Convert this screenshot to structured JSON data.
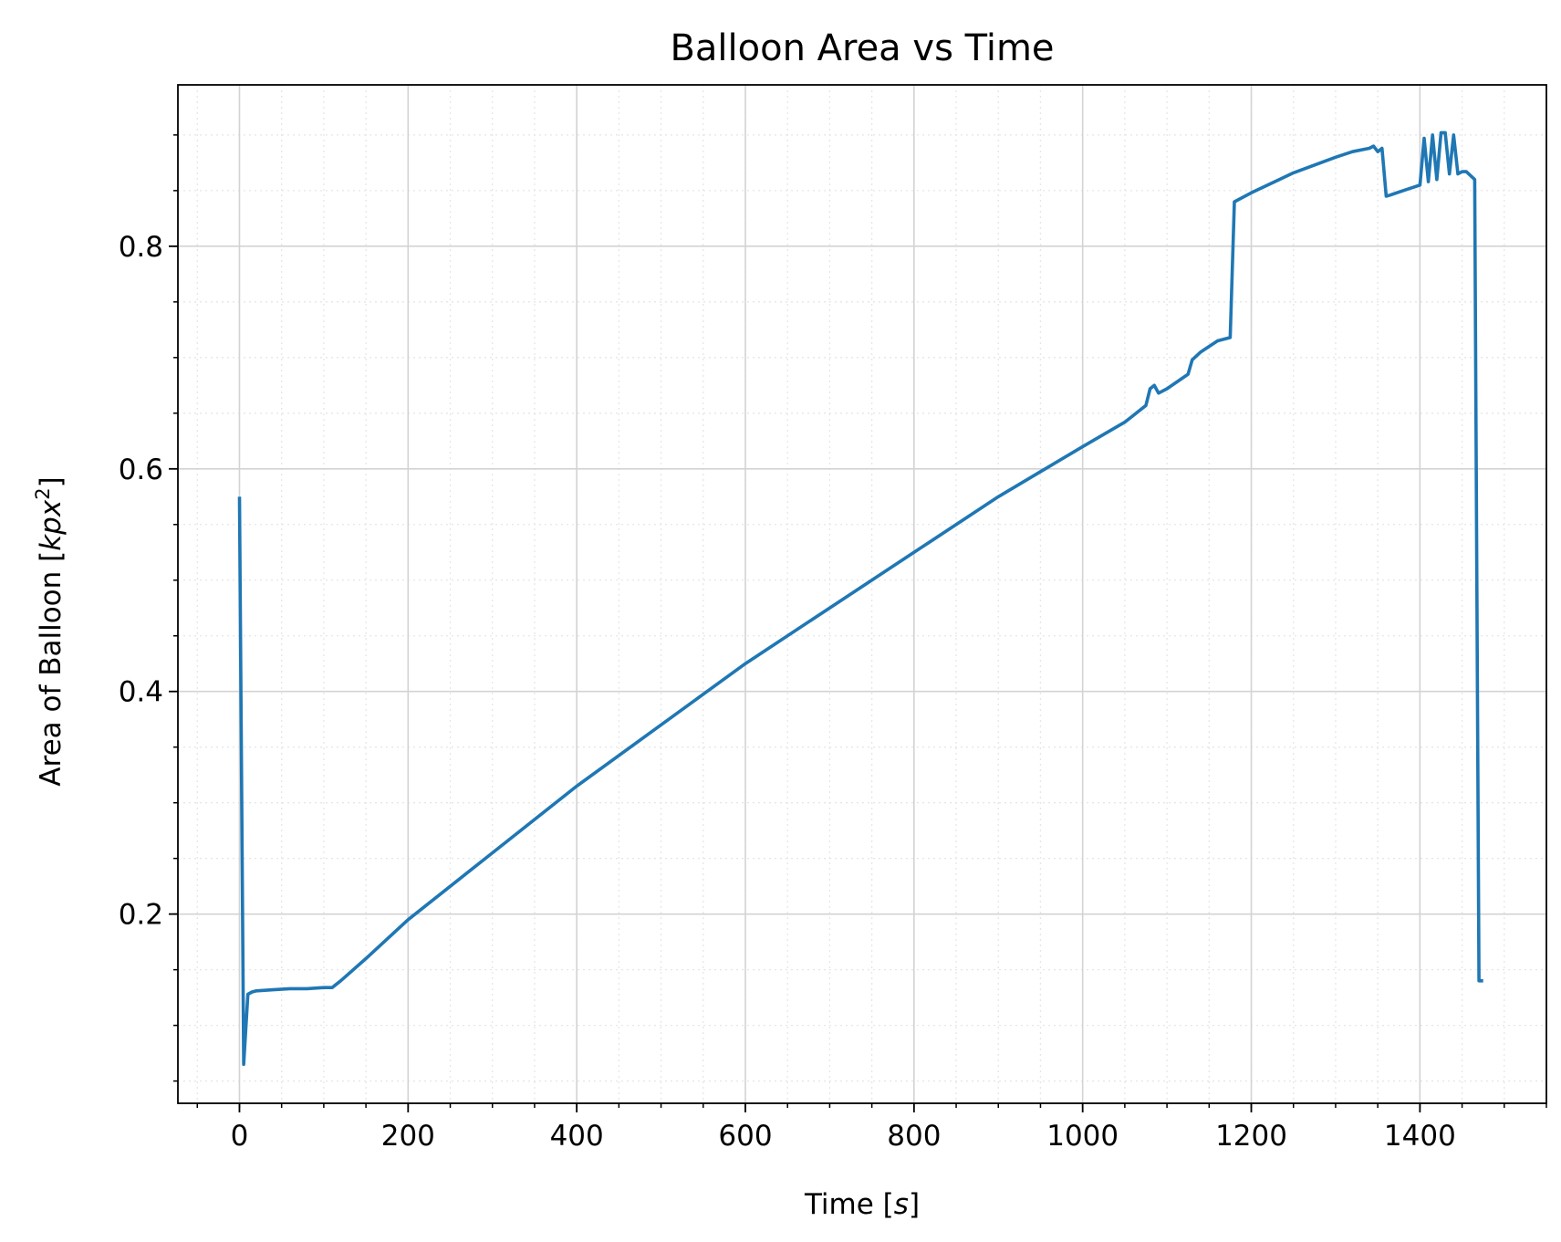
{
  "chart_data": {
    "type": "line",
    "title": "Balloon Area vs Time",
    "xlabel": "Time",
    "xlabel_unit": "s",
    "ylabel": "Area of Balloon",
    "ylabel_unit": "kpx",
    "ylabel_unit_exp": "2",
    "xlim": [
      -73,
      1550
    ],
    "ylim": [
      0.03,
      0.945
    ],
    "xticks": [
      0,
      200,
      400,
      600,
      800,
      1000,
      1200,
      1400
    ],
    "xtick_labels": [
      "0",
      "200",
      "400",
      "600",
      "800",
      "1000",
      "1200",
      "1400"
    ],
    "yticks": [
      0.2,
      0.4,
      0.6,
      0.8
    ],
    "ytick_labels": [
      "0.2",
      "0.4",
      "0.6",
      "0.8"
    ],
    "x_minor_step": 50,
    "y_minor_step": 0.05,
    "grid": true,
    "minor_grid": true,
    "line_color": "#1f77b4",
    "series": [
      {
        "x": [
          0,
          5,
          10,
          15,
          20,
          40,
          60,
          80,
          100,
          110,
          120,
          150,
          200,
          300,
          400,
          500,
          600,
          700,
          800,
          900,
          1000,
          1050,
          1075,
          1080,
          1085,
          1090,
          1100,
          1125,
          1130,
          1140,
          1160,
          1175,
          1180,
          1200,
          1250,
          1300,
          1320,
          1340,
          1345,
          1350,
          1355,
          1360,
          1365,
          1380,
          1400,
          1405,
          1410,
          1415,
          1420,
          1425,
          1430,
          1435,
          1440,
          1445,
          1450,
          1455,
          1465,
          1470,
          1475
        ],
        "y": [
          0.575,
          0.065,
          0.128,
          0.13,
          0.131,
          0.132,
          0.133,
          0.133,
          0.134,
          0.134,
          0.14,
          0.16,
          0.195,
          0.255,
          0.315,
          0.37,
          0.425,
          0.475,
          0.525,
          0.575,
          0.62,
          0.642,
          0.657,
          0.672,
          0.675,
          0.668,
          0.672,
          0.685,
          0.698,
          0.705,
          0.715,
          0.718,
          0.84,
          0.848,
          0.866,
          0.88,
          0.885,
          0.888,
          0.89,
          0.885,
          0.888,
          0.845,
          0.846,
          0.85,
          0.855,
          0.897,
          0.858,
          0.9,
          0.86,
          0.902,
          0.902,
          0.865,
          0.9,
          0.865,
          0.867,
          0.867,
          0.86,
          0.14,
          0.14
        ]
      }
    ]
  }
}
